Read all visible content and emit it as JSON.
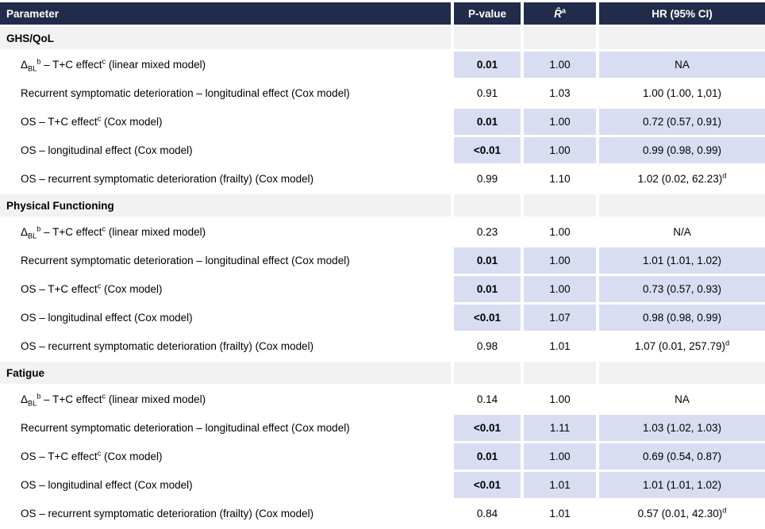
{
  "table": {
    "colors": {
      "header_bg": "#212b4a",
      "header_text": "#ffffff",
      "section_bg": "#f2f2f3",
      "highlight_bg": "#d9ddf2",
      "row_bg": "#ffffff",
      "text": "#000000"
    },
    "columns": [
      {
        "key": "parameter",
        "label": "Parameter"
      },
      {
        "key": "pvalue",
        "label": "P-value"
      },
      {
        "key": "rhat",
        "label": "~{R̂}^{a}"
      },
      {
        "key": "hr",
        "label": "HR (95% CI)"
      }
    ],
    "sections": [
      {
        "title": "GHS/QoL",
        "rows": [
          {
            "parameter": "Δ_{BL}^{b} – T+C effect^{c} (linear mixed model)",
            "pvalue": "0.01",
            "rhat": "1.00",
            "hr": "NA",
            "highlight": true
          },
          {
            "parameter": "Recurrent symptomatic deterioration – longitudinal effect (Cox model)",
            "pvalue": "0.91",
            "rhat": "1.03",
            "hr": "1.00 (1.00, 1,01)",
            "highlight": false
          },
          {
            "parameter": "OS – T+C effect^{c} (Cox model)",
            "pvalue": "0.01",
            "rhat": "1.00",
            "hr": "0.72 (0.57, 0.91)",
            "highlight": true
          },
          {
            "parameter": "OS – longitudinal effect (Cox model)",
            "pvalue": "<0.01",
            "rhat": "1.00",
            "hr": "0.99 (0.98, 0.99)",
            "highlight": true
          },
          {
            "parameter": "OS – recurrent symptomatic deterioration (frailty) (Cox model)",
            "pvalue": "0.99",
            "rhat": "1.10",
            "hr": "1.02 (0.02, 62.23)^{d}",
            "highlight": false
          }
        ]
      },
      {
        "title": "Physical Functioning",
        "rows": [
          {
            "parameter": "Δ_{BL}^{b}  – T+C effect^{c} (linear mixed model)",
            "pvalue": "0.23",
            "rhat": "1.00",
            "hr": "N/A",
            "highlight": false
          },
          {
            "parameter": "Recurrent symptomatic deterioration – longitudinal effect (Cox model)",
            "pvalue": "0.01",
            "rhat": "1.00",
            "hr": "1.01 (1.01, 1.02)",
            "highlight": true
          },
          {
            "parameter": "OS – T+C effect^{c} (Cox model)",
            "pvalue": "0.01",
            "rhat": "1.00",
            "hr": "0.73 (0.57, 0.93)",
            "highlight": true
          },
          {
            "parameter": "OS – longitudinal effect (Cox model)",
            "pvalue": "<0.01",
            "rhat": "1.07",
            "hr": "0.98 (0.98, 0.99)",
            "highlight": true
          },
          {
            "parameter": "OS – recurrent symptomatic deterioration (frailty) (Cox model)",
            "pvalue": "0.98",
            "rhat": "1.01",
            "hr": "1.07 (0.01, 257.79)^{d}",
            "highlight": false
          }
        ]
      },
      {
        "title": "Fatigue",
        "rows": [
          {
            "parameter": "Δ_{BL}^{b} – T+C effect^{c} (linear mixed model)",
            "pvalue": "0.14",
            "rhat": "1.00",
            "hr": "NA",
            "highlight": false
          },
          {
            "parameter": "Recurrent symptomatic deterioration – longitudinal effect (Cox model)",
            "pvalue": "<0.01",
            "rhat": "1.11",
            "hr": "1.03 (1.02, 1.03)",
            "highlight": true
          },
          {
            "parameter": "OS – T+C effect^{c} (Cox model)",
            "pvalue": "0.01",
            "rhat": "1.00",
            "hr": "0.69 (0.54, 0.87)",
            "highlight": true
          },
          {
            "parameter": "OS – longitudinal effect (Cox model)",
            "pvalue": "<0.01",
            "rhat": "1.01",
            "hr": "1.01 (1.01, 1.02)",
            "highlight": true
          },
          {
            "parameter": "OS – recurrent symptomatic deterioration (frailty) (Cox model)",
            "pvalue": "0.84",
            "rhat": "1.01",
            "hr": "0.57 (0.01, 42.30)^{d}",
            "highlight": false
          }
        ]
      }
    ]
  }
}
